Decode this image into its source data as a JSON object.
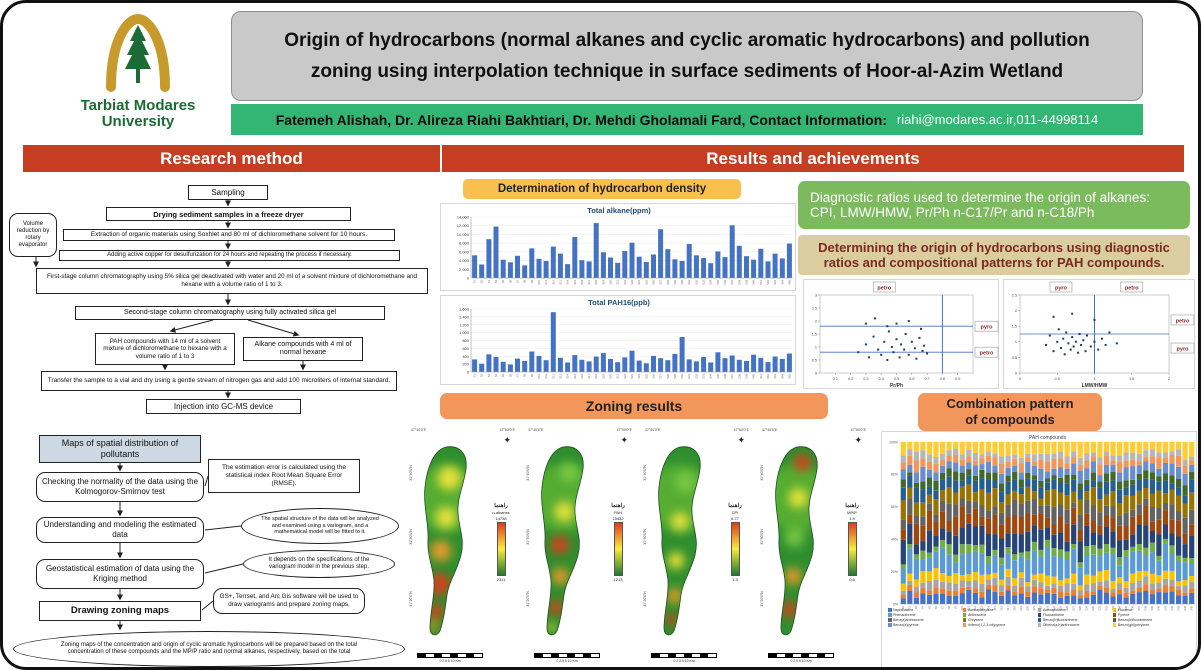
{
  "colors": {
    "band_red": "#C63D21",
    "authors_green": "#33B573",
    "diagnostic_green": "#7CBB5D",
    "pah_tan": "#DACD9F",
    "density_yellow": "#F9C050",
    "zoning_orange": "#F2965C",
    "bar_blue": "#4472C4",
    "title_gray": "#C9C9C9"
  },
  "header": {
    "university_line1": "Tarbiat Modares",
    "university_line2": "University",
    "title": "Origin of hydrocarbons (normal alkanes and cyclic aromatic hydrocarbons) and pollution zoning using interpolation technique in surface sediments of Hoor-al-Azim Wetland",
    "authors": "Fatemeh Alishah, Dr. Alireza Riahi Bakhtiari, Dr. Mehdi Gholamali Fard, Contact Information:",
    "contact": "riahi@modares.ac.ir,011-44998114"
  },
  "sections": {
    "left": "Research method",
    "right": "Results and achievements"
  },
  "flowchart": {
    "sampling": "Sampling",
    "drying": "Drying sediment samples in a freeze dryer",
    "extraction": "Extraction of organic materials using Soxhlet and 80 ml of dichloromethane solvent for 10 hours.",
    "copper": "Adding active copper for desulfurization for 24 hours and repeating the process if necessary.",
    "first_stage": "First-stage column chromatography using 5% silica gel deactivated with water and 20 ml of a solvent mixture of dichloromethane and hexane with a volume ratio of 1 to 3.",
    "volume_side": "Volume reduction by rotary evaporator",
    "second_stage": "Second-stage column chromatography using fully activated silica gel",
    "pah_branch": "PAH compounds with 14 ml of a solvent mixture of dichloromethane to hexane with a volume ratio of 1 to 3",
    "alkane_branch": "Alkane compounds with 4 ml of normal hexane",
    "transfer": "Transfer the sample to a vial and dry using a gentle stream of nitrogen gas and add 100 microliters of internal standard.",
    "injection": "Injection into GC-MS device",
    "maps_box": "Maps of spatial distribution of pollutants",
    "normality": "Checking the normality of the data using the Kolmogorov-Smirnov test",
    "modeling": "Understanding and modeling the estimated data",
    "kriging": "Geostatistical estimation of data using the Kriging method",
    "drawing": "Drawing zoning maps",
    "conclusion": "Zoning maps of the concentration and origin of cyclic aromatic hydrocarbons will be prepared based on the total concentration of these compounds and the MP/P ratio and normal alkanes, respectively, based on the total"
  },
  "annotations": {
    "rmse": "The estimation error is calculated using the statistical index Root Mean Square Error (RMSE).",
    "variogram": "The spatial structure of the data will be analyzed and examined using a variogram, and a mathematical model will be fitted to it.",
    "depends": "It depends on the specifications of the variogram model in the previous step.",
    "software": "GS+, Terrset, and Arc Gis software will be used to draw variograms and prepare zoning maps."
  },
  "results": {
    "density_header": "Determination of hydrocarbon density",
    "diagnostic_line1": "Diagnostic ratios used to determine the origin of alkanes:",
    "diagnostic_line2": "CPI, LMW/HMW, Pr/Ph n-C17/Pr and n-C18/Ph",
    "pah_box": "Determining the origin of hydrocarbons using diagnostic ratios and compositional patterns for PAH compounds.",
    "zoning_header": "Zoning results",
    "combination_line1": "Combination pattern",
    "combination_line2": "of compounds"
  },
  "chart_data": {
    "stations": [
      "S1",
      "S2",
      "S3",
      "S4",
      "S5",
      "S6",
      "S7",
      "S8",
      "S9",
      "S10",
      "S11",
      "S12",
      "S13",
      "S14",
      "S15",
      "S16",
      "S17",
      "S18",
      "S19",
      "S20",
      "S21",
      "S22",
      "S23",
      "S24",
      "S25",
      "S26",
      "S27",
      "S28",
      "S29",
      "S30",
      "S31",
      "S32",
      "S33",
      "S34",
      "S35",
      "S36",
      "S37",
      "S38",
      "S39",
      "S40",
      "S41",
      "S42",
      "S43",
      "S44",
      "S45"
    ],
    "alkane_bar": {
      "type": "bar",
      "title": "Total alkane(ppm)",
      "categories": "stations",
      "values": [
        5200,
        3100,
        8900,
        11800,
        4200,
        3600,
        5100,
        2900,
        6800,
        4400,
        3900,
        7200,
        5600,
        3200,
        9400,
        4100,
        3800,
        12600,
        5900,
        4700,
        3500,
        6200,
        8100,
        4900,
        3700,
        5400,
        11200,
        6600,
        4300,
        3900,
        7800,
        5200,
        4600,
        3400,
        6100,
        4800,
        12100,
        7400,
        5000,
        4200,
        6700,
        3800,
        5600,
        4500,
        7900
      ],
      "ymax": 14000,
      "yticks": [
        "14,000",
        "12,000",
        "10,000",
        "8,000",
        "6,000",
        "4,000",
        "2,000",
        "0"
      ],
      "color": "#4472C4"
    },
    "pah_bar": {
      "type": "bar",
      "title": "Total PAH16(ppb)",
      "categories": "stations",
      "values": [
        320,
        210,
        450,
        380,
        260,
        190,
        340,
        280,
        520,
        410,
        300,
        1520,
        360,
        240,
        430,
        310,
        270,
        390,
        480,
        330,
        250,
        370,
        540,
        290,
        220,
        410,
        350,
        300,
        460,
        890,
        320,
        270,
        380,
        240,
        500,
        350,
        420,
        310,
        280,
        440,
        360,
        250,
        390,
        330,
        470
      ],
      "ymax": 1600,
      "yticks": [
        "1,600",
        "1,400",
        "1,200",
        "1,000",
        "800",
        "600",
        "400",
        "200",
        "0"
      ],
      "color": "#4472C4"
    },
    "scatter_prph": {
      "type": "scatter",
      "xlabel": "Pr/Ph",
      "xlim": [
        0,
        1
      ],
      "xticks": [
        0.1,
        0.2,
        0.3,
        0.4,
        0.5,
        0.6,
        0.7,
        0.8,
        0.9
      ],
      "ylim": [
        0,
        3
      ],
      "yticks": [
        0,
        0.5,
        1,
        1.5,
        2,
        2.5,
        3
      ],
      "points": [
        [
          0.25,
          0.8
        ],
        [
          0.3,
          1.1
        ],
        [
          0.32,
          0.6
        ],
        [
          0.35,
          1.4
        ],
        [
          0.38,
          0.9
        ],
        [
          0.4,
          0.7
        ],
        [
          0.42,
          1.2
        ],
        [
          0.44,
          0.5
        ],
        [
          0.45,
          1.6
        ],
        [
          0.47,
          1.0
        ],
        [
          0.48,
          0.8
        ],
        [
          0.5,
          1.3
        ],
        [
          0.52,
          0.6
        ],
        [
          0.53,
          1.1
        ],
        [
          0.55,
          0.9
        ],
        [
          0.56,
          1.5
        ],
        [
          0.58,
          0.7
        ],
        [
          0.6,
          1.2
        ],
        [
          0.62,
          0.95
        ],
        [
          0.63,
          0.55
        ],
        [
          0.65,
          1.35
        ],
        [
          0.67,
          0.85
        ],
        [
          0.68,
          1.05
        ],
        [
          0.7,
          0.75
        ],
        [
          0.3,
          1.9
        ],
        [
          0.36,
          2.1
        ],
        [
          0.5,
          1.9
        ],
        [
          0.58,
          2.0
        ],
        [
          0.44,
          1.8
        ],
        [
          0.66,
          1.7
        ]
      ],
      "vlines": [
        0.8
      ],
      "hlines": [
        1.8,
        0.8
      ],
      "top_labels": [
        {
          "text": "petro",
          "x": 0.42
        }
      ],
      "right_labels": [
        {
          "text": "pyro",
          "y": 1.8
        },
        {
          "text": "petro",
          "y": 0.8
        }
      ],
      "point_color": "#203864",
      "guide_color": "#4472C4"
    },
    "scatter_lmw": {
      "type": "scatter",
      "xlabel": "LMW/HMW",
      "xlim": [
        0,
        2
      ],
      "xticks": [
        0,
        0.5,
        1,
        1.5,
        2
      ],
      "ylim": [
        0,
        2.5
      ],
      "yticks": [
        0,
        0.5,
        1,
        1.5,
        2,
        2.5
      ],
      "points": [
        [
          0.35,
          0.9
        ],
        [
          0.4,
          1.2
        ],
        [
          0.45,
          0.7
        ],
        [
          0.5,
          1.0
        ],
        [
          0.52,
          1.4
        ],
        [
          0.55,
          0.8
        ],
        [
          0.58,
          1.1
        ],
        [
          0.6,
          0.6
        ],
        [
          0.62,
          1.3
        ],
        [
          0.65,
          0.95
        ],
        [
          0.68,
          0.75
        ],
        [
          0.7,
          1.15
        ],
        [
          0.72,
          0.85
        ],
        [
          0.75,
          1.0
        ],
        [
          0.78,
          0.65
        ],
        [
          0.8,
          1.25
        ],
        [
          0.82,
          0.9
        ],
        [
          0.85,
          1.05
        ],
        [
          0.88,
          0.7
        ],
        [
          0.9,
          1.2
        ],
        [
          0.95,
          0.85
        ],
        [
          1.0,
          1.0
        ],
        [
          1.05,
          0.75
        ],
        [
          1.1,
          1.1
        ],
        [
          1.15,
          0.9
        ],
        [
          1.2,
          1.3
        ],
        [
          0.45,
          1.8
        ],
        [
          0.7,
          1.9
        ],
        [
          1.0,
          1.7
        ],
        [
          1.3,
          0.95
        ]
      ],
      "vlines": [
        1
      ],
      "hlines": [
        1.25
      ],
      "top_labels": [
        {
          "text": "pyro",
          "x": 0.55
        },
        {
          "text": "petro",
          "x": 1.5
        }
      ],
      "right_labels": [
        {
          "text": "petro",
          "y": 1.7
        },
        {
          "text": "pyro",
          "y": 0.8
        }
      ],
      "point_color": "#203864",
      "guide_color": "#4472C4"
    },
    "stacked_pah": {
      "type": "stacked-bar-100",
      "title": "PAH compounds",
      "categories": "stations",
      "yticks": [
        "100%",
        "80%",
        "60%",
        "40%",
        "20%",
        "0%"
      ],
      "series": [
        {
          "name": "Naphthalene",
          "color": "#4472C4",
          "base": 6
        },
        {
          "name": "Acenaphthylene",
          "color": "#ED7D31",
          "base": 3
        },
        {
          "name": "Acenaphthene",
          "color": "#A5A5A5",
          "base": 4
        },
        {
          "name": "Fluorene",
          "color": "#FFC000",
          "base": 5
        },
        {
          "name": "Phenanthrene",
          "color": "#5B9BD5",
          "base": 12
        },
        {
          "name": "Anthracene",
          "color": "#70AD47",
          "base": 4
        },
        {
          "name": "Fluoranthene",
          "color": "#264478",
          "base": 10
        },
        {
          "name": "Pyrene",
          "color": "#9E480E",
          "base": 9
        },
        {
          "name": "Benz(a)anthracene",
          "color": "#636363",
          "base": 7
        },
        {
          "name": "Chrysene",
          "color": "#997300",
          "base": 8
        },
        {
          "name": "Benzo(b)fluoranthene",
          "color": "#255E91",
          "base": 6
        },
        {
          "name": "Benzo(k)fluoranthene",
          "color": "#43682B",
          "base": 4
        },
        {
          "name": "Benzo(a)pyrene",
          "color": "#698ED0",
          "base": 6
        },
        {
          "name": "Indeno(1,2,3-cd)pyrene",
          "color": "#F1975A",
          "base": 5
        },
        {
          "name": "Dibenz(a,h)anthracene",
          "color": "#B7B7B7",
          "base": 4
        },
        {
          "name": "Benzo(ghi)perylene",
          "color": "#FFCD33",
          "base": 7
        }
      ]
    },
    "zoning_maps": {
      "type": "choropleth-map-series",
      "shared": {
        "legend_title": "راهنما",
        "top_coords": [
          "47°40'0\"E",
          "47°50'0\"E"
        ],
        "side_coords": [
          "31°40'0\"N",
          "31°30'0\"N",
          "31°20'0\"N"
        ],
        "scale_text": "0 2.5 5 10 Km"
      },
      "maps": [
        {
          "label": "n-alkanes",
          "high": "14738",
          "low": "2311",
          "hotspots": [
            [
              0.55,
              0.18,
              0.18,
              "y"
            ],
            [
              0.5,
              0.38,
              0.16,
              "y"
            ],
            [
              0.42,
              0.55,
              0.16,
              "o"
            ],
            [
              0.4,
              0.72,
              0.17,
              "r"
            ],
            [
              0.35,
              0.86,
              0.12,
              "r"
            ],
            [
              0.3,
              0.93,
              0.08,
              "o"
            ]
          ]
        },
        {
          "label": "PAH",
          "high": "15432",
          "low": "1213",
          "hotspots": [
            [
              0.6,
              0.15,
              0.15,
              "g"
            ],
            [
              0.52,
              0.35,
              0.15,
              "y"
            ],
            [
              0.45,
              0.52,
              0.14,
              "r"
            ],
            [
              0.46,
              0.68,
              0.13,
              "o"
            ],
            [
              0.4,
              0.84,
              0.11,
              "r"
            ],
            [
              0.32,
              0.94,
              0.07,
              "y"
            ]
          ]
        },
        {
          "label": "CPI",
          "high": "6.77",
          "low": "1.3",
          "hotspots": [
            [
              0.58,
              0.2,
              0.16,
              "g"
            ],
            [
              0.5,
              0.4,
              0.14,
              "y"
            ],
            [
              0.44,
              0.6,
              0.13,
              "y"
            ],
            [
              0.42,
              0.78,
              0.12,
              "o"
            ],
            [
              0.36,
              0.9,
              0.09,
              "r"
            ]
          ]
        },
        {
          "label": "MP/P",
          "high": "1.9",
          "low": "0.6",
          "hotspots": [
            [
              0.58,
              0.1,
              0.13,
              "r"
            ],
            [
              0.52,
              0.28,
              0.15,
              "y"
            ],
            [
              0.46,
              0.48,
              0.15,
              "g"
            ],
            [
              0.44,
              0.68,
              0.13,
              "o"
            ],
            [
              0.38,
              0.85,
              0.12,
              "r"
            ]
          ]
        }
      ]
    }
  }
}
